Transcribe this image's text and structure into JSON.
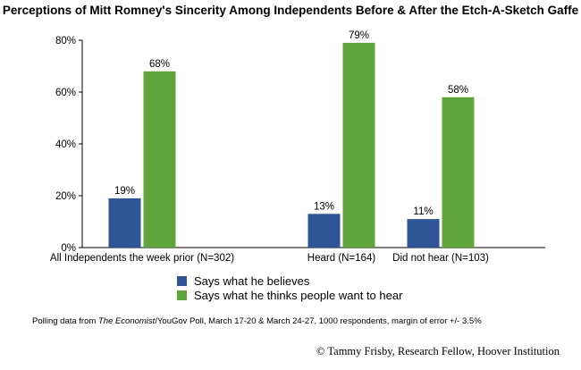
{
  "chart_data": {
    "type": "bar",
    "title": "Perceptions of Mitt Romney's Sincerity Among Independents Before & After the Etch-A-Sketch Gaffe",
    "xlabel": "",
    "ylabel": "",
    "ylim": [
      0,
      80
    ],
    "yticks": [
      "0%",
      "20%",
      "40%",
      "60%",
      "80%"
    ],
    "ytick_values": [
      0,
      20,
      40,
      60,
      80
    ],
    "grid": false,
    "legend_position": "bottom",
    "categories": [
      "All Independents the week prior (N=302)",
      "Heard (N=164)",
      "Did not hear (N=103)"
    ],
    "series": [
      {
        "name": "Says what he believes",
        "values": [
          19,
          13,
          11
        ],
        "labels": [
          "19%",
          "13%",
          "11%"
        ],
        "color": "#2f5597"
      },
      {
        "name": "Says what he thinks people want to hear",
        "values": [
          68,
          79,
          58
        ],
        "labels": [
          "68%",
          "79%",
          "58%"
        ],
        "color": "#5fa53c"
      }
    ]
  },
  "footer": {
    "source_prefix": "Polling data from ",
    "source_italic": "The Economist",
    "source_suffix": "/YouGov Poll, March 17-20 & March 24-27, 1000 respondents, margin of error +/- 3.5%",
    "copyright": "© Tammy Frisby, Research Fellow, Hoover Institution"
  }
}
